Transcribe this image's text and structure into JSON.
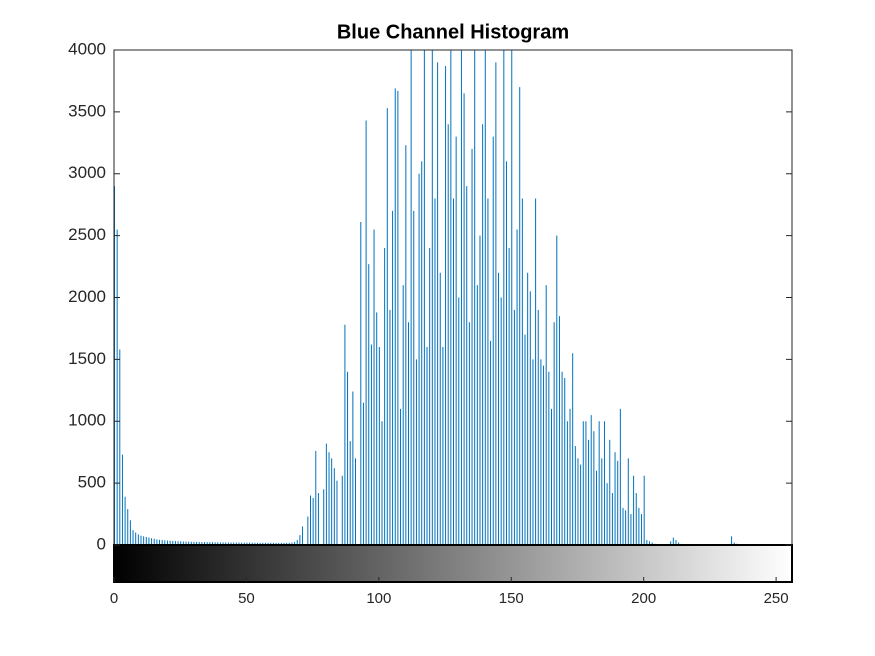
{
  "chart_data": {
    "type": "stem",
    "title": "Blue Channel Histogram",
    "color": "#0072bd",
    "xlim": [
      0,
      256
    ],
    "ylim": [
      0,
      4000
    ],
    "xticks": [
      0,
      50,
      100,
      150,
      200,
      250
    ],
    "yticks": [
      0,
      500,
      1000,
      1500,
      2000,
      2500,
      3000,
      3500,
      4000
    ],
    "values": [
      2900,
      2550,
      1580,
      730,
      390,
      290,
      200,
      120,
      100,
      85,
      75,
      70,
      65,
      60,
      55,
      50,
      45,
      42,
      40,
      38,
      36,
      35,
      33,
      32,
      30,
      30,
      28,
      28,
      27,
      26,
      26,
      25,
      25,
      24,
      24,
      23,
      23,
      22,
      22,
      22,
      21,
      21,
      21,
      20,
      20,
      20,
      20,
      20,
      19,
      19,
      19,
      19,
      19,
      18,
      18,
      18,
      18,
      18,
      18,
      18,
      18,
      17,
      17,
      17,
      17,
      18,
      18,
      20,
      25,
      40,
      80,
      150,
      0,
      230,
      400,
      380,
      760,
      420,
      0,
      450,
      820,
      750,
      700,
      620,
      520,
      0,
      560,
      1780,
      1400,
      840,
      1240,
      700,
      0,
      2610,
      1150,
      3430,
      2270,
      1620,
      2550,
      1880,
      1600,
      1000,
      2400,
      3530,
      1900,
      2700,
      3690,
      3670,
      1100,
      2100,
      3230,
      1800,
      4200,
      2700,
      1500,
      3000,
      3100,
      4000,
      1600,
      2400,
      4100,
      2800,
      3900,
      2200,
      1600,
      3870,
      3400,
      4200,
      2800,
      3300,
      2000,
      4100,
      3650,
      2900,
      1800,
      3200,
      4300,
      2100,
      2500,
      3400,
      4200,
      2800,
      1650,
      3300,
      3900,
      2200,
      2000,
      4100,
      3100,
      2400,
      4200,
      1900,
      2550,
      3700,
      2800,
      1700,
      2200,
      2050,
      1500,
      2800,
      1900,
      1500,
      1450,
      2100,
      1400,
      1100,
      1800,
      2500,
      1850,
      1400,
      1350,
      1000,
      1100,
      1550,
      800,
      700,
      650,
      1000,
      1000,
      850,
      1050,
      920,
      600,
      1000,
      700,
      1000,
      500,
      850,
      420,
      750,
      680,
      1100,
      300,
      280,
      700,
      250,
      560,
      420,
      300,
      250,
      560,
      40,
      30,
      20,
      10,
      0,
      0,
      0,
      0,
      0,
      30,
      60,
      40,
      20,
      0,
      0,
      0,
      0,
      0,
      0,
      0,
      0,
      0,
      0,
      0,
      0,
      0,
      0,
      0,
      0,
      0,
      0,
      0,
      70,
      20,
      10,
      0,
      0,
      0,
      0,
      0,
      0,
      0,
      0,
      0,
      0,
      0,
      0,
      0,
      0,
      0,
      0,
      0,
      0,
      0,
      0
    ]
  }
}
